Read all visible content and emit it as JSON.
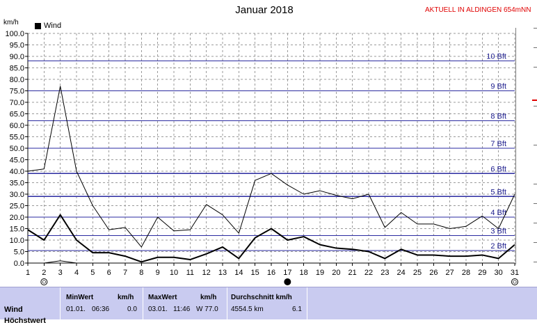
{
  "header": {
    "title": "Januar 2018",
    "station": "AKTUELL IN ALDINGEN 654mNN",
    "unit": "km/h",
    "legend_label": "Wind"
  },
  "stats": {
    "row_label": "Wind",
    "row_label_2": "Höchstwert",
    "min_header": "MinWert",
    "min_unit": "km/h",
    "min_date": "01.01.",
    "min_time": "06:36",
    "min_value": "0.0",
    "max_header": "MaxWert",
    "max_unit": "km/h",
    "max_date": "03.01.",
    "max_time": "11:46",
    "max_value": "W 77.0",
    "avg_header": "Durchschnitt km/h",
    "avg_distance": "4554.5 km",
    "avg_value": "6.1"
  },
  "colors": {
    "beaufort_line": "#2a2aa0",
    "beaufort_label": "#1a1a8c",
    "grid": "#9a9a9a",
    "series": "#000000",
    "stats_bg": "#c9cbf0"
  },
  "chart_data": {
    "type": "line",
    "title": "Januar 2018",
    "ylabel": "km/h",
    "xlim": [
      1,
      31
    ],
    "ylim": [
      0,
      100
    ],
    "yticks": [
      "0.0",
      "5.0",
      "10.0",
      "15.0",
      "20.0",
      "25.0",
      "30.0",
      "35.0",
      "40.0",
      "45.0",
      "50.0",
      "55.0",
      "60.0",
      "65.0",
      "70.0",
      "75.0",
      "80.0",
      "85.0",
      "90.0",
      "95.0",
      "100.0"
    ],
    "x": [
      1,
      2,
      3,
      4,
      5,
      6,
      7,
      8,
      9,
      10,
      11,
      12,
      13,
      14,
      15,
      16,
      17,
      18,
      19,
      20,
      21,
      22,
      23,
      24,
      25,
      26,
      27,
      28,
      29,
      30,
      31
    ],
    "xticks": [
      "1",
      "2",
      "3",
      "4",
      "5",
      "6",
      "7",
      "8",
      "9",
      "10",
      "11",
      "12",
      "13",
      "14",
      "15",
      "16",
      "17",
      "18",
      "19",
      "20",
      "21",
      "22",
      "23",
      "24",
      "25",
      "26",
      "27",
      "28",
      "29",
      "30",
      "31"
    ],
    "grid": true,
    "legend": "top-left",
    "series": [
      {
        "name": "Wind",
        "role": "max",
        "stroke_width": 1,
        "values": [
          40,
          41,
          77,
          40,
          25,
          14.5,
          15.5,
          7,
          20,
          14,
          14.5,
          25.5,
          21,
          13,
          36,
          39,
          34,
          30,
          31.5,
          29.5,
          28,
          30,
          15.5,
          22,
          17,
          17,
          15,
          16,
          20.5,
          15,
          30
        ]
      },
      {
        "role": "mean",
        "stroke_width": 2,
        "values": [
          14.5,
          10,
          21,
          10,
          4.5,
          4.5,
          3,
          0.5,
          2.5,
          2.5,
          1.5,
          4,
          7,
          2,
          11,
          15,
          10,
          11.5,
          8,
          6.5,
          6,
          5,
          2,
          6,
          3.5,
          3.5,
          3,
          3,
          3.5,
          2,
          8
        ]
      },
      {
        "role": "min",
        "stroke_width": 1,
        "values": [
          0,
          0,
          1,
          0,
          0,
          0,
          0,
          0,
          0,
          0,
          0,
          0,
          0,
          0,
          0,
          0,
          0,
          0,
          0,
          0,
          0,
          0,
          0,
          0,
          0,
          0,
          0,
          0,
          0,
          0,
          0
        ]
      }
    ],
    "beaufort_levels": [
      {
        "label": "2 Bft",
        "value": 5.5
      },
      {
        "label": "3 Bft",
        "value": 12
      },
      {
        "label": "4 Bft",
        "value": 20
      },
      {
        "label": "5 Bft",
        "value": 29
      },
      {
        "label": "6 Bft",
        "value": 39
      },
      {
        "label": "7 Bft",
        "value": 50
      },
      {
        "label": "8 Bft",
        "value": 62
      },
      {
        "label": "9 Bft",
        "value": 75
      },
      {
        "label": "10 Bft",
        "value": 88
      }
    ],
    "day_markers": [
      {
        "day": 2,
        "icon": "new-moon-outline-icon"
      },
      {
        "day": 17,
        "icon": "full-moon-filled-icon"
      },
      {
        "day": 31,
        "icon": "moon-outline-icon"
      }
    ]
  }
}
